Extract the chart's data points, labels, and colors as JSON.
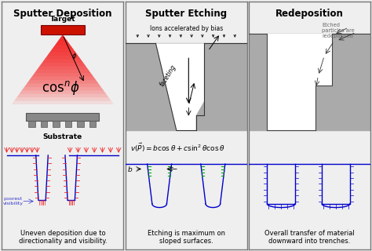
{
  "bg_color": "#efefef",
  "panel_titles": [
    "Sputter Deposition",
    "Sputter Etching",
    "Redeposition"
  ],
  "title_fontsize": 8.5,
  "caption1": "Uneven deposition due to\ndirectionality and visibility.",
  "caption2": "Etching is maximum on\nsloped surfaces.",
  "caption3": "Overall transfer of material\ndownward into trenches.",
  "gray_color": "#aaaaaa",
  "blue_line": "#0000cc",
  "red_cone": "#ff0000",
  "target_color": "#cc1100",
  "arrow_color": "#222222",
  "green_color": "#00aa00",
  "tick_red": "#ee2222",
  "tick_blue": "#3333cc"
}
